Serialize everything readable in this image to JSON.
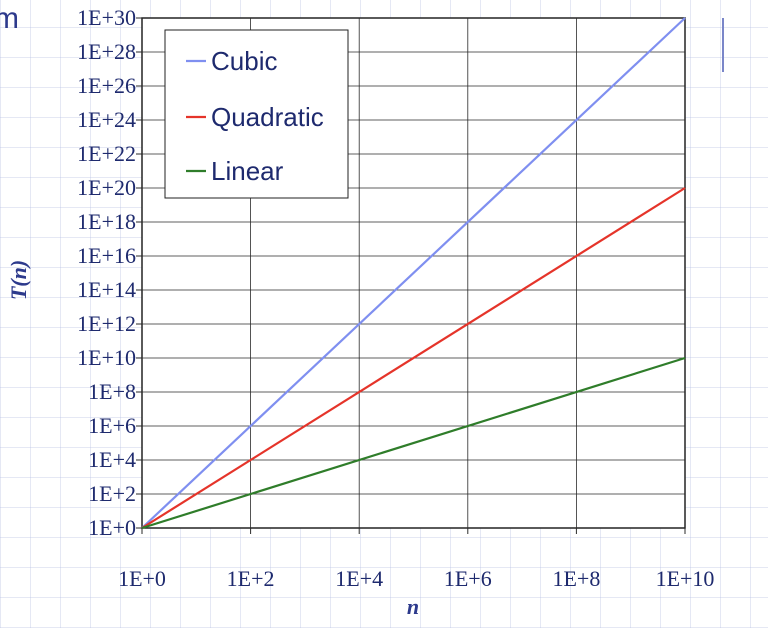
{
  "page": {
    "title_fragment": "m"
  },
  "chart_data": {
    "type": "line",
    "title": "",
    "xlabel": "n",
    "ylabel": "T(n)",
    "x_scale": "log10",
    "y_scale": "log10",
    "xlim": [
      1,
      10000000000
    ],
    "ylim": [
      1,
      1e+30
    ],
    "x_ticks": [
      "1E+0",
      "1E+2",
      "1E+4",
      "1E+6",
      "1E+8",
      "1E+10"
    ],
    "y_ticks": [
      "1E+0",
      "1E+2",
      "1E+4",
      "1E+6",
      "1E+8",
      "1E+10",
      "1E+12",
      "1E+14",
      "1E+16",
      "1E+18",
      "1E+20",
      "1E+22",
      "1E+24",
      "1E+26",
      "1E+28",
      "1E+30"
    ],
    "grid": true,
    "legend_position": "top-left",
    "series": [
      {
        "name": "Cubic",
        "color": "#7f8ff0",
        "x": [
          1,
          10000000000
        ],
        "y": [
          1,
          1e+30
        ]
      },
      {
        "name": "Quadratic",
        "color": "#e5342a",
        "x": [
          1,
          10000000000
        ],
        "y": [
          1,
          1e+20
        ]
      },
      {
        "name": "Linear",
        "color": "#2f7d2a",
        "x": [
          1,
          10000000000
        ],
        "y": [
          1,
          10000000000
        ]
      }
    ]
  }
}
